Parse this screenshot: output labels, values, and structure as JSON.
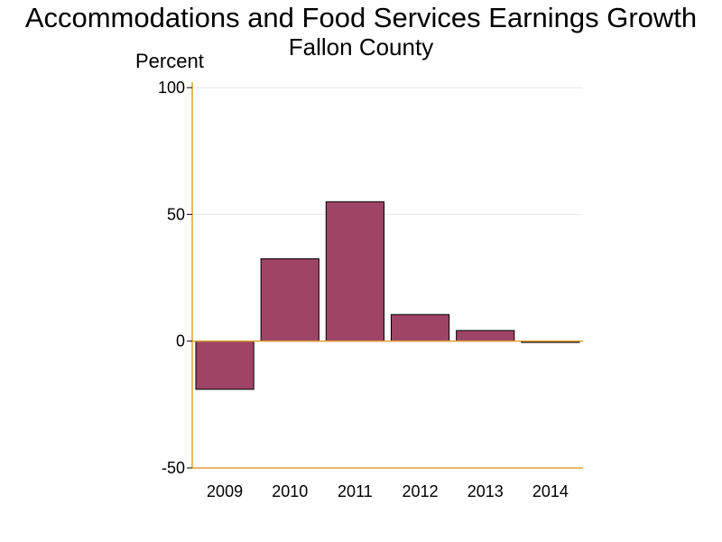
{
  "chart_data": {
    "type": "bar",
    "title": "Accommodations and Food Services Earnings Growth",
    "subtitle": "Fallon County",
    "ylabel": "Percent",
    "xlabel": "",
    "categories": [
      "2009",
      "2010",
      "2011",
      "2012",
      "2013",
      "2014"
    ],
    "values": [
      -19,
      32.5,
      55,
      10.5,
      4.2,
      -0.5
    ],
    "ylim": [
      -50,
      100
    ],
    "yticks": [
      -50,
      0,
      50,
      100
    ],
    "grid": true,
    "colors": {
      "bar": "#9e4466",
      "bar_border": "#000000",
      "axis": "#e0a030",
      "grid": "#e6e6e6"
    }
  }
}
